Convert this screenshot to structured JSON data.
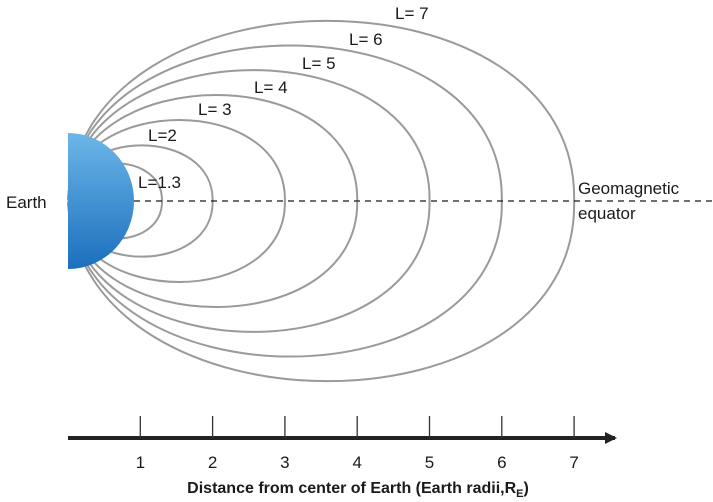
{
  "diagram": {
    "earth_label": "Earth",
    "equator_label_line1": "Geomagnetic",
    "equator_label_line2": "equator",
    "field_lines": [
      {
        "label": "L=1.3",
        "L": 1.3
      },
      {
        "label": "L=2",
        "L": 2
      },
      {
        "label": "L= 3",
        "L": 3
      },
      {
        "label": "L= 4",
        "L": 4
      },
      {
        "label": "L= 5",
        "L": 5
      },
      {
        "label": "L= 6",
        "L": 6
      },
      {
        "label": "L= 7",
        "L": 7
      }
    ],
    "axis": {
      "ticks": [
        "1",
        "2",
        "3",
        "4",
        "5",
        "6",
        "7"
      ],
      "title_main": "Distance from center of Earth (Earth radii,R",
      "title_subscript": "E",
      "title_close": ")"
    },
    "colors": {
      "earth_top": "#6cb6e8",
      "earth_bottom": "#1b6fbd",
      "field_line": "#9a9a9a",
      "axis": "#222222"
    }
  }
}
